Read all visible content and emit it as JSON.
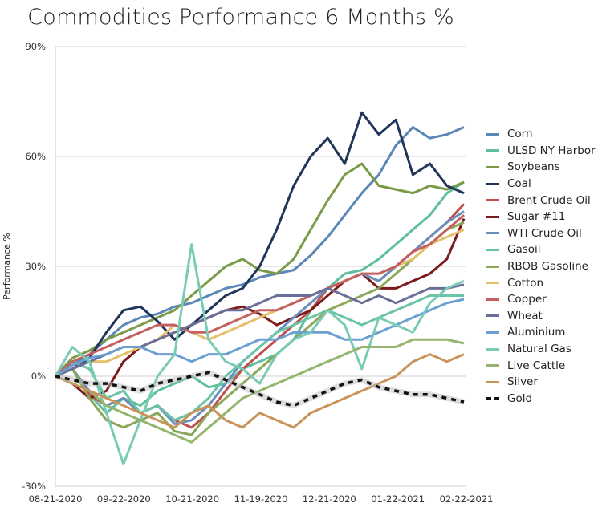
{
  "chart_data": {
    "type": "line",
    "title": "Commodities Performance 6 Months %",
    "xlabel": "",
    "ylabel": "Performance %",
    "ylim": [
      -30,
      90
    ],
    "yticks": [
      -30,
      0,
      30,
      60,
      90
    ],
    "ytick_labels": [
      "-30%",
      "0%",
      "30%",
      "60%",
      "90%"
    ],
    "xtick_labels": [
      "08-21-2020",
      "09-22-2020",
      "10-21-2020",
      "11-19-2020",
      "12-21-2020",
      "01-22-2021",
      "02-22-2021"
    ],
    "grid": true,
    "legend_position": "right",
    "x_points": 25,
    "series": [
      {
        "name": "Corn",
        "color": "#5b86b5",
        "dash": false,
        "values": [
          0,
          3,
          6,
          10,
          14,
          16,
          17,
          19,
          20,
          22,
          24,
          25,
          27,
          28,
          29,
          33,
          38,
          44,
          50,
          55,
          63,
          68,
          65,
          66,
          68
        ]
      },
      {
        "name": "ULSD NY Harbor",
        "color": "#5dbf9c",
        "dash": false,
        "values": [
          0,
          2,
          -5,
          -10,
          -6,
          -8,
          -4,
          -2,
          0,
          -3,
          -2,
          2,
          4,
          6,
          10,
          18,
          24,
          28,
          29,
          32,
          36,
          40,
          44,
          50,
          53
        ]
      },
      {
        "name": "Soybeans",
        "color": "#7a9a48",
        "dash": false,
        "values": [
          0,
          5,
          7,
          10,
          12,
          14,
          16,
          18,
          22,
          26,
          30,
          32,
          29,
          28,
          32,
          40,
          48,
          55,
          58,
          52,
          51,
          50,
          52,
          51,
          53
        ]
      },
      {
        "name": "Coal",
        "color": "#1f3559",
        "dash": false,
        "values": [
          0,
          2,
          5,
          12,
          18,
          19,
          15,
          10,
          14,
          18,
          22,
          24,
          30,
          40,
          52,
          60,
          65,
          58,
          72,
          66,
          70,
          55,
          58,
          52,
          50
        ]
      },
      {
        "name": "Brent Crude Oil",
        "color": "#c0504d",
        "dash": false,
        "values": [
          0,
          2,
          -5,
          -8,
          -6,
          -10,
          -8,
          -12,
          -14,
          -10,
          -4,
          2,
          6,
          10,
          14,
          18,
          24,
          26,
          28,
          26,
          30,
          34,
          38,
          42,
          47
        ]
      },
      {
        "name": "Sugar #11",
        "color": "#7b1a1a",
        "dash": false,
        "values": [
          0,
          -2,
          -6,
          -4,
          4,
          8,
          10,
          12,
          14,
          16,
          18,
          19,
          17,
          14,
          16,
          18,
          22,
          26,
          28,
          24,
          24,
          26,
          28,
          32,
          43
        ]
      },
      {
        "name": "WTI Crude Oil",
        "color": "#6a8fbd",
        "dash": false,
        "values": [
          0,
          2,
          -4,
          -8,
          -6,
          -10,
          -8,
          -13,
          -12,
          -8,
          -2,
          4,
          8,
          12,
          16,
          20,
          24,
          26,
          28,
          26,
          30,
          34,
          38,
          42,
          45
        ]
      },
      {
        "name": "Gasoil",
        "color": "#6cc4a8",
        "dash": false,
        "values": [
          0,
          4,
          2,
          -6,
          -4,
          -10,
          -8,
          -12,
          -10,
          -6,
          0,
          4,
          8,
          12,
          14,
          16,
          18,
          16,
          14,
          16,
          18,
          20,
          22,
          22,
          22
        ]
      },
      {
        "name": "RBOB Gasoline",
        "color": "#8aa75a",
        "dash": false,
        "values": [
          0,
          2,
          -6,
          -12,
          -14,
          -12,
          -10,
          -15,
          -16,
          -10,
          -6,
          -2,
          2,
          6,
          10,
          14,
          18,
          20,
          22,
          24,
          28,
          32,
          36,
          40,
          42
        ]
      },
      {
        "name": "Cotton",
        "color": "#e6bf6a",
        "dash": false,
        "values": [
          0,
          2,
          4,
          4,
          6,
          8,
          10,
          14,
          12,
          10,
          12,
          14,
          16,
          18,
          20,
          22,
          24,
          26,
          28,
          28,
          30,
          32,
          36,
          38,
          40
        ]
      },
      {
        "name": "Copper",
        "color": "#c46060",
        "dash": false,
        "values": [
          0,
          4,
          6,
          8,
          10,
          12,
          14,
          14,
          12,
          12,
          14,
          16,
          18,
          18,
          20,
          22,
          24,
          26,
          28,
          28,
          30,
          34,
          36,
          40,
          44
        ]
      },
      {
        "name": "Wheat",
        "color": "#6a6f99",
        "dash": false,
        "values": [
          0,
          2,
          4,
          6,
          8,
          8,
          10,
          12,
          14,
          16,
          18,
          18,
          20,
          22,
          22,
          22,
          24,
          22,
          20,
          22,
          20,
          22,
          24,
          24,
          25
        ]
      },
      {
        "name": "Aluminium",
        "color": "#6b9fd4",
        "dash": false,
        "values": [
          0,
          3,
          5,
          6,
          8,
          8,
          6,
          6,
          4,
          6,
          6,
          8,
          10,
          10,
          12,
          12,
          12,
          10,
          10,
          12,
          14,
          16,
          18,
          20,
          21
        ]
      },
      {
        "name": "Natural Gas",
        "color": "#7acbb5",
        "dash": false,
        "values": [
          0,
          8,
          4,
          -10,
          -24,
          -12,
          0,
          6,
          36,
          10,
          4,
          2,
          -2,
          6,
          10,
          12,
          18,
          14,
          2,
          16,
          14,
          12,
          20,
          24,
          26
        ]
      },
      {
        "name": "Live Cattle",
        "color": "#93b56e",
        "dash": false,
        "values": [
          0,
          -2,
          -4,
          -8,
          -10,
          -12,
          -14,
          -16,
          -18,
          -14,
          -10,
          -6,
          -4,
          -2,
          0,
          2,
          4,
          6,
          8,
          8,
          8,
          10,
          10,
          10,
          9
        ]
      },
      {
        "name": "Silver",
        "color": "#c9945a",
        "dash": false,
        "values": [
          0,
          -2,
          -4,
          -6,
          -8,
          -10,
          -12,
          -14,
          -10,
          -8,
          -12,
          -14,
          -10,
          -12,
          -14,
          -10,
          -8,
          -6,
          -4,
          -2,
          0,
          4,
          6,
          4,
          6
        ]
      },
      {
        "name": "Gold",
        "color": "#111111",
        "dash": true,
        "values": [
          0,
          -1,
          -2,
          -2,
          -3,
          -4,
          -2,
          -1,
          0,
          1,
          -1,
          -3,
          -5,
          -7,
          -8,
          -6,
          -4,
          -2,
          -1,
          -3,
          -4,
          -5,
          -5,
          -6,
          -7
        ]
      }
    ]
  }
}
